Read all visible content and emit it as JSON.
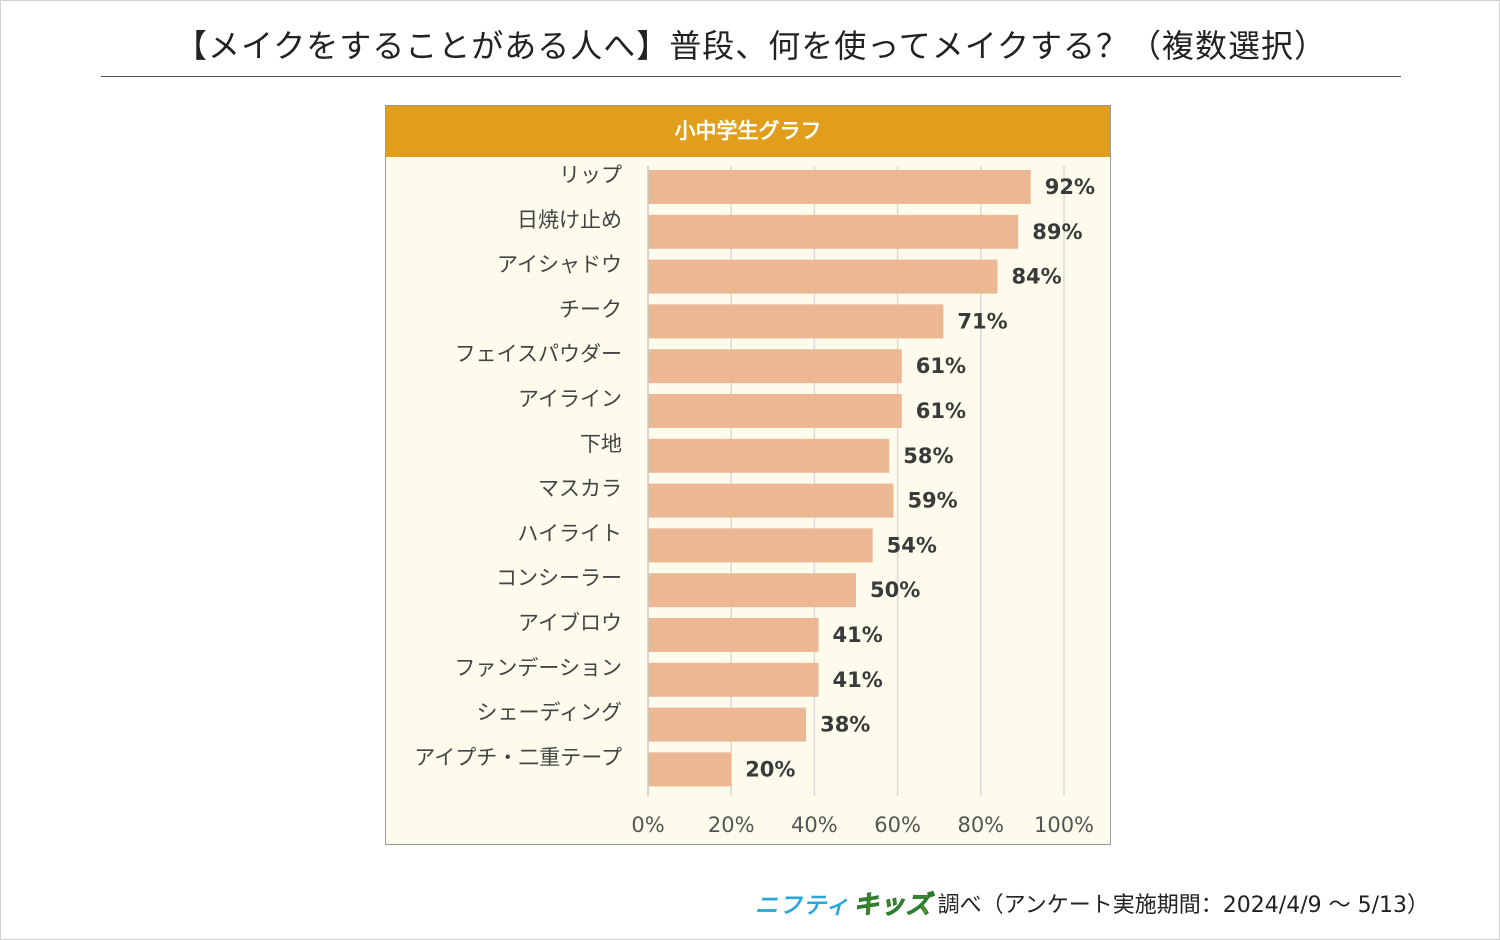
{
  "title": "【メイクをすることがある人へ】普段、何を使ってメイクする？（複数選択）",
  "chart_data": {
    "type": "bar",
    "orientation": "horizontal",
    "title": "小中学生グラフ",
    "categories": [
      "リップ",
      "日焼け止め",
      "アイシャドウ",
      "チーク",
      "フェイスパウダー",
      "アイライン",
      "下地",
      "マスカラ",
      "ハイライト",
      "コンシーラー",
      "アイブロウ",
      "ファンデーション",
      "シェーディング",
      "アイプチ・二重テープ"
    ],
    "values": [
      92,
      89,
      84,
      71,
      61,
      61,
      58,
      59,
      54,
      50,
      41,
      41,
      38,
      20
    ],
    "value_labels": [
      "92%",
      "89%",
      "84%",
      "71%",
      "61%",
      "61%",
      "58%",
      "59%",
      "54%",
      "50%",
      "41%",
      "41%",
      "38%",
      "20%"
    ],
    "xlim": [
      0,
      100
    ],
    "xticks": [
      0,
      20,
      40,
      60,
      80,
      100
    ],
    "xtick_labels": [
      "0%",
      "20%",
      "40%",
      "60%",
      "80%",
      "100%"
    ],
    "grid": true,
    "colors": {
      "bar": "#ecb894",
      "header": "#e19e1b",
      "background": "#fdfbec"
    }
  },
  "footer": {
    "brand_part1": "ニフティ",
    "brand_part2": "キッズ",
    "text": "調べ（アンケート実施期間：2024/4/9 ～ 5/13）"
  }
}
